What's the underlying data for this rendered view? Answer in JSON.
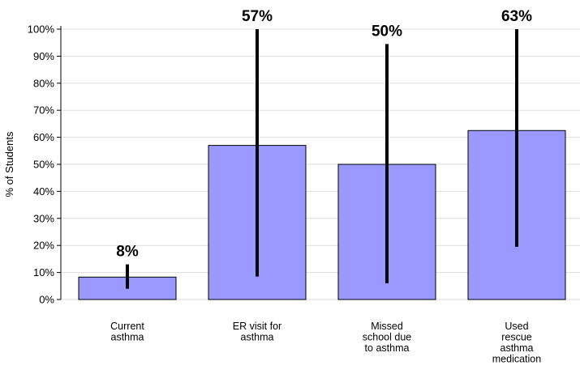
{
  "chart_data": {
    "type": "bar",
    "title": "",
    "xlabel": "",
    "ylabel": "% of Students",
    "ylim": [
      0,
      100
    ],
    "yticks": [
      0,
      10,
      20,
      30,
      40,
      50,
      60,
      70,
      80,
      90,
      100
    ],
    "ytick_format": "{v}%",
    "grid": true,
    "categories": [
      [
        "Current",
        "asthma"
      ],
      [
        "ER visit for",
        "asthma"
      ],
      [
        "Missed",
        "school due",
        "to asthma"
      ],
      [
        "Used",
        "rescue",
        "asthma",
        "medication"
      ]
    ],
    "values": [
      8.3,
      57,
      50,
      62.5
    ],
    "value_labels": [
      "8%",
      "57%",
      "50%",
      "63%"
    ],
    "error_low": [
      4,
      8.5,
      6,
      19.5
    ],
    "error_high": [
      13,
      100,
      94.5,
      100
    ],
    "colors": {
      "bar_fill": "#9999ff",
      "bar_stroke": "#000000",
      "grid": "#dedede",
      "error_bar": "#000000"
    }
  }
}
